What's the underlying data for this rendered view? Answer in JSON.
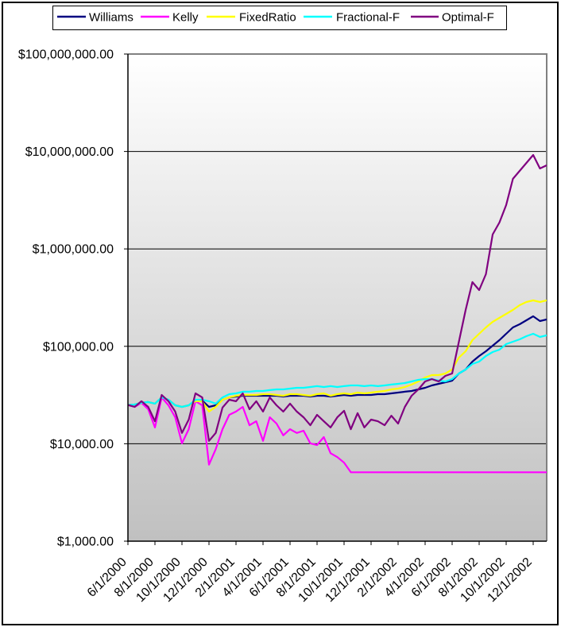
{
  "chart_data": {
    "type": "line",
    "title": "",
    "xlabel": "",
    "ylabel": "",
    "yscale": "log",
    "ylim": [
      1000,
      100000000
    ],
    "grid": true,
    "legend_position": "top",
    "y_ticks": [
      100000000,
      10000000,
      1000000,
      100000,
      10000,
      1000
    ],
    "y_tick_labels": [
      "$100,000,000.00",
      "$10,000,000.00",
      "$1,000,000.00",
      "$100,000.00",
      "$10,000.00",
      "$1,000.00"
    ],
    "categories": [
      "6/1/2000",
      "8/1/2000",
      "10/1/2000",
      "12/1/2000",
      "2/1/2001",
      "4/1/2001",
      "6/1/2001",
      "8/1/2001",
      "10/1/2001",
      "12/1/2001",
      "2/1/2002",
      "4/1/2002",
      "6/1/2002",
      "8/1/2002",
      "10/1/2002",
      "12/1/2002"
    ],
    "x": [
      "6/1/2000",
      "6/16/2000",
      "7/1/2000",
      "7/16/2000",
      "8/1/2000",
      "8/16/2000",
      "9/1/2000",
      "9/16/2000",
      "10/1/2000",
      "10/16/2000",
      "11/1/2000",
      "11/16/2000",
      "12/1/2000",
      "12/16/2000",
      "1/1/2001",
      "1/16/2001",
      "2/1/2001",
      "2/16/2001",
      "3/1/2001",
      "3/16/2001",
      "4/1/2001",
      "4/16/2001",
      "5/1/2001",
      "5/16/2001",
      "6/1/2001",
      "6/16/2001",
      "7/1/2001",
      "7/16/2001",
      "8/1/2001",
      "8/16/2001",
      "9/1/2001",
      "9/16/2001",
      "10/1/2001",
      "10/16/2001",
      "11/1/2001",
      "11/16/2001",
      "12/1/2001",
      "12/16/2001",
      "1/1/2002",
      "1/16/2002",
      "2/1/2002",
      "2/16/2002",
      "3/1/2002",
      "3/16/2002",
      "4/1/2002",
      "4/16/2002",
      "5/1/2002",
      "5/16/2002",
      "6/1/2002",
      "6/16/2002",
      "7/1/2002",
      "7/16/2002",
      "8/1/2002",
      "8/16/2002",
      "9/1/2002",
      "9/16/2002",
      "10/1/2002",
      "10/16/2002",
      "11/1/2002",
      "11/16/2002",
      "12/1/2002",
      "12/16/2002",
      "1/1/2003"
    ],
    "series": [
      {
        "name": "Williams",
        "color": "#000080",
        "values": [
          25000,
          25300,
          26300,
          26800,
          25800,
          29900,
          28300,
          24800,
          23900,
          24800,
          27300,
          27800,
          23900,
          24800,
          28300,
          29900,
          30500,
          31100,
          31100,
          31100,
          31100,
          31100,
          31100,
          30500,
          31100,
          31100,
          31100,
          30500,
          31100,
          31100,
          30500,
          31100,
          31700,
          31100,
          31700,
          31700,
          31700,
          32300,
          32300,
          32900,
          33500,
          34200,
          34800,
          36100,
          37500,
          39700,
          41200,
          42800,
          44400,
          52600,
          57800,
          69700,
          79500,
          89000,
          101500,
          115800,
          134500,
          156400,
          168500,
          185200,
          203400,
          181700,
          188700
        ]
      },
      {
        "name": "Kelly",
        "color": "#ff00ff",
        "values": [
          25000,
          23900,
          26300,
          22600,
          14700,
          29900,
          24800,
          18700,
          10100,
          14100,
          27300,
          24800,
          6100,
          8800,
          14100,
          19800,
          21400,
          23900,
          15500,
          17000,
          10700,
          18700,
          16100,
          12200,
          14100,
          12900,
          13600,
          10100,
          9700,
          11700,
          8000,
          7300,
          6400,
          5100,
          5100,
          5100,
          5100,
          5100,
          5100,
          5100,
          5100,
          5100,
          5100,
          5100,
          5100,
          5100,
          5100,
          5100,
          5100,
          5100,
          5100,
          5100,
          5100,
          5100,
          5100,
          5100,
          5100,
          5100,
          5100,
          5100,
          5100,
          5100,
          5100
        ]
      },
      {
        "name": "FixedRatio",
        "color": "#ffff00",
        "values": [
          25000,
          25300,
          26300,
          26800,
          25800,
          29900,
          28300,
          24800,
          23900,
          24800,
          27300,
          27300,
          21400,
          23900,
          28300,
          29900,
          31100,
          31700,
          31700,
          31700,
          32300,
          32300,
          31700,
          31100,
          32300,
          32300,
          31700,
          31100,
          32300,
          32900,
          31100,
          32300,
          32900,
          32300,
          33500,
          32900,
          33500,
          34200,
          34800,
          36100,
          36800,
          38200,
          40500,
          43600,
          47900,
          50700,
          50700,
          52600,
          57800,
          76600,
          89000,
          115800,
          134500,
          156400,
          178400,
          195900,
          215200,
          236400,
          264600,
          285200,
          296100,
          285200,
          296100
        ]
      },
      {
        "name": "Fractional-F",
        "color": "#00ffff",
        "values": [
          25000,
          25300,
          26300,
          26800,
          25800,
          29900,
          28300,
          24800,
          23900,
          24800,
          28300,
          28300,
          27300,
          25800,
          29900,
          32300,
          32900,
          34200,
          34200,
          34800,
          34800,
          35500,
          36100,
          36100,
          36800,
          37500,
          37500,
          38200,
          39000,
          38200,
          39000,
          38200,
          39000,
          39700,
          39700,
          39000,
          39700,
          39000,
          39700,
          40500,
          41200,
          42000,
          43600,
          45300,
          46100,
          46100,
          44400,
          43600,
          46100,
          52600,
          57800,
          65900,
          69700,
          79500,
          87400,
          92400,
          105400,
          111500,
          118000,
          127200,
          134500,
          124800,
          129600
        ]
      },
      {
        "name": "Optimal-F",
        "color": "#800080",
        "values": [
          25000,
          23900,
          27300,
          23900,
          17000,
          31700,
          27300,
          21400,
          12900,
          17700,
          32900,
          29900,
          10700,
          12900,
          23500,
          28300,
          27300,
          32900,
          22600,
          27300,
          21400,
          29900,
          24800,
          21400,
          25800,
          21400,
          18700,
          15500,
          19800,
          17000,
          14700,
          18700,
          21800,
          14100,
          20600,
          14700,
          17700,
          17000,
          15500,
          19400,
          16100,
          23900,
          31100,
          36100,
          43600,
          46100,
          43600,
          49700,
          52600,
          111500,
          236400,
          456100,
          378000,
          550300,
          1408000,
          1866000,
          2819000,
          5242000,
          6322000,
          7629000,
          9206000,
          6690000,
          7213000
        ]
      }
    ]
  }
}
